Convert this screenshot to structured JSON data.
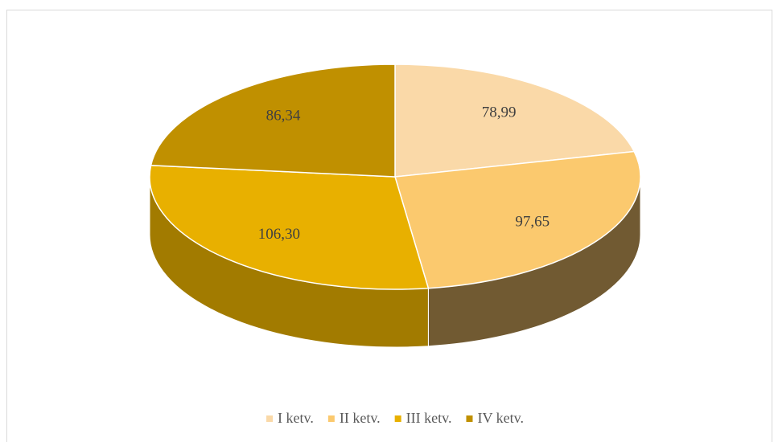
{
  "chart_data": {
    "type": "pie",
    "categories": [
      "I ketv.",
      "II ketv.",
      "III ketv.",
      "IV ketv."
    ],
    "values": [
      78.99,
      97.65,
      106.3,
      86.34
    ],
    "value_labels": [
      "78,99",
      "97,65",
      "106,30",
      "86,34"
    ],
    "colors": [
      "#fad9a8",
      "#fbc96e",
      "#e8b000",
      "#c09000"
    ],
    "legend": "bottom"
  }
}
